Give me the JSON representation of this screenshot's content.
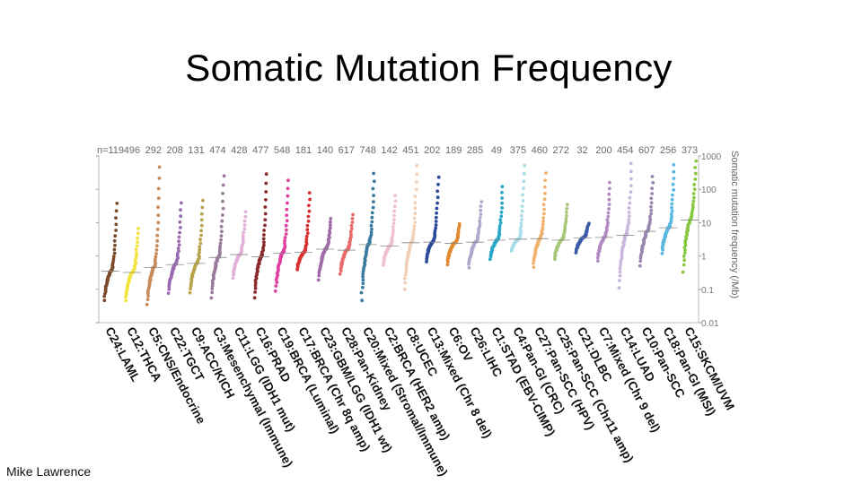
{
  "slide": {
    "title": "Somatic Mutation Frequency",
    "credit": "Mike Lawrence"
  },
  "chart_data": {
    "type": "scatter",
    "title": "Somatic Mutation Frequency",
    "ylabel": "Somatic mutation frequency (/Mb)",
    "yscale": "log",
    "ylim": [
      0.01,
      1000
    ],
    "yticks": [
      {
        "value": 1000,
        "label": "1000"
      },
      {
        "value": 100,
        "label": "100"
      },
      {
        "value": 10,
        "label": "10"
      },
      {
        "value": 1,
        "label": "1"
      },
      {
        "value": 0.1,
        "label": "0.1"
      },
      {
        "value": 0.01,
        "label": "0.01"
      }
    ],
    "count_prefix": "n=",
    "categories": [
      {
        "name": "C24:LAML",
        "n": "119",
        "color": "#7a4a2a",
        "median": 0.35,
        "min": 0.03,
        "max": 50
      },
      {
        "name": "C12:THCA",
        "n": "496",
        "color": "#f2e43a",
        "median": 0.32,
        "min": 0.03,
        "max": 8
      },
      {
        "name": "C5:CNS/Endocrine",
        "n": "292",
        "color": "#c98a5a",
        "median": 0.45,
        "min": 0.02,
        "max": 700
      },
      {
        "name": "C22:TGCT",
        "n": "208",
        "color": "#9a6ab0",
        "median": 0.55,
        "min": 0.05,
        "max": 50
      },
      {
        "name": "C9:ACC/KICH",
        "n": "131",
        "color": "#b8a24a",
        "median": 0.6,
        "min": 0.05,
        "max": 60
      },
      {
        "name": "C3:Mesenchymal (Immune)",
        "n": "474",
        "color": "#9a7a9a",
        "median": 0.9,
        "min": 0.03,
        "max": 350
      },
      {
        "name": "C11:LGG (IDH1 mut)",
        "n": "428",
        "color": "#e2b0d8",
        "median": 1.1,
        "min": 0.15,
        "max": 25
      },
      {
        "name": "C16:PRAD",
        "n": "477",
        "color": "#8a2a2a",
        "median": 0.95,
        "min": 0.03,
        "max": 400
      },
      {
        "name": "C19:BRCA (Luminal)",
        "n": "548",
        "color": "#e040a0",
        "median": 1.2,
        "min": 0.05,
        "max": 250
      },
      {
        "name": "C17:BRCA (Chr 8q amp)",
        "n": "181",
        "color": "#d83030",
        "median": 1.3,
        "min": 0.3,
        "max": 100
      },
      {
        "name": "C23:GBM/LGG (IDH1 wt)",
        "n": "140",
        "color": "#a06aa8",
        "median": 1.6,
        "min": 0.12,
        "max": 15
      },
      {
        "name": "C28:Pan-Kidney",
        "n": "617",
        "color": "#e86a6a",
        "median": 1.5,
        "min": 0.2,
        "max": 20
      },
      {
        "name": "C20:Mixed (Stromal/Immune)",
        "n": "748",
        "color": "#3a7aa0",
        "median": 2.2,
        "min": 0.02,
        "max": 400
      },
      {
        "name": "C2:BRCA (HER2 amp)",
        "n": "142",
        "color": "#f0c0cc",
        "median": 2.0,
        "min": 0.4,
        "max": 80
      },
      {
        "name": "C8:UCEC",
        "n": "451",
        "color": "#f2d0b8",
        "median": 2.5,
        "min": 0.05,
        "max": 700
      },
      {
        "name": "C13:Mixed (Chr 8 del)",
        "n": "202",
        "color": "#2a4a9a",
        "median": 2.6,
        "min": 0.5,
        "max": 300
      },
      {
        "name": "C6:OV",
        "n": "189",
        "color": "#e08a30",
        "median": 2.4,
        "min": 0.4,
        "max": 10
      },
      {
        "name": "C26:LIHC",
        "n": "285",
        "color": "#b0a8cc",
        "median": 2.6,
        "min": 0.3,
        "max": 50
      },
      {
        "name": "C1:STAD (EBV-CIMP)",
        "n": "49",
        "color": "#2aa8c8",
        "median": 3.0,
        "min": 0.6,
        "max": 150
      },
      {
        "name": "C4:Pan-GI (CRC)",
        "n": "375",
        "color": "#a8dce8",
        "median": 3.2,
        "min": 1.2,
        "max": 700
      },
      {
        "name": "C27:Pan-SCC (HPV)",
        "n": "460",
        "color": "#f0b070",
        "median": 3.3,
        "min": 0.3,
        "max": 400
      },
      {
        "name": "C25:Pan-SCC (Chr11 amp)",
        "n": "272",
        "color": "#a8c878",
        "median": 3.0,
        "min": 0.6,
        "max": 40
      },
      {
        "name": "C21:DLBC",
        "n": "32",
        "color": "#3a5aa8",
        "median": 3.5,
        "min": 1.0,
        "max": 10
      },
      {
        "name": "C7:Mixed (Chr 9 del)",
        "n": "200",
        "color": "#b08ac0",
        "median": 3.6,
        "min": 0.5,
        "max": 200
      },
      {
        "name": "C14:LUAD",
        "n": "454",
        "color": "#c8b8dc",
        "median": 4.2,
        "min": 0.05,
        "max": 800
      },
      {
        "name": "C10:Pan-SCC",
        "n": "607",
        "color": "#9888b0",
        "median": 5.5,
        "min": 0.3,
        "max": 300
      },
      {
        "name": "C18:Pan-GI (MSI)",
        "n": "256",
        "color": "#58b8e0",
        "median": 7.0,
        "min": 0.8,
        "max": 700
      },
      {
        "name": "C15:SKCM/UVM",
        "n": "373",
        "color": "#88c840",
        "median": 12,
        "min": 0.15,
        "max": 900
      }
    ]
  }
}
